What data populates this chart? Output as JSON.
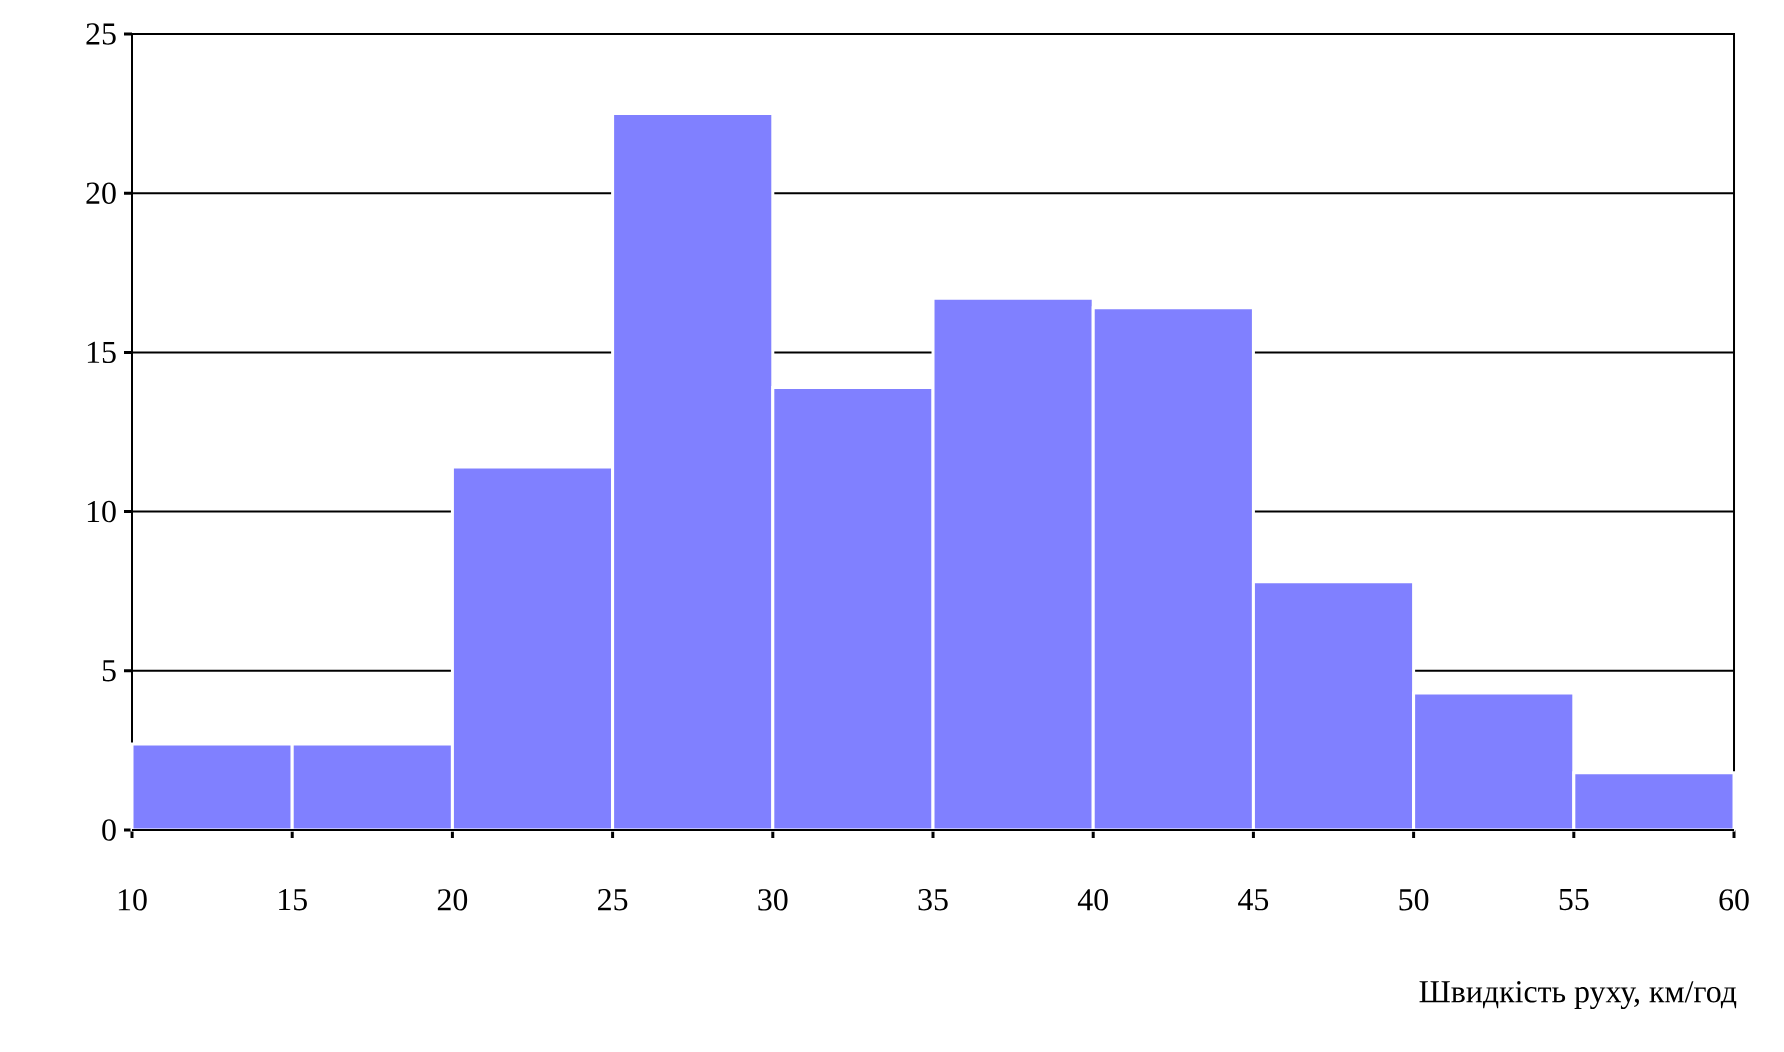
{
  "chart_data": {
    "type": "histogram",
    "xlabel": "Швидкість руху, км/год",
    "bins": [
      10,
      15,
      20,
      25,
      30,
      35,
      40,
      45,
      50,
      55,
      60
    ],
    "values": [
      2.7,
      2.7,
      11.4,
      22.5,
      13.9,
      16.7,
      16.4,
      7.8,
      4.3,
      1.8
    ],
    "color": "#8080ff",
    "xlim": [
      10,
      60
    ],
    "xticks": [
      10,
      15,
      20,
      25,
      30,
      35,
      40,
      45,
      50,
      55,
      60
    ],
    "ylim": [
      0,
      25
    ],
    "yticks": [
      0,
      5,
      10,
      15,
      20,
      25
    ],
    "grid": "y"
  }
}
